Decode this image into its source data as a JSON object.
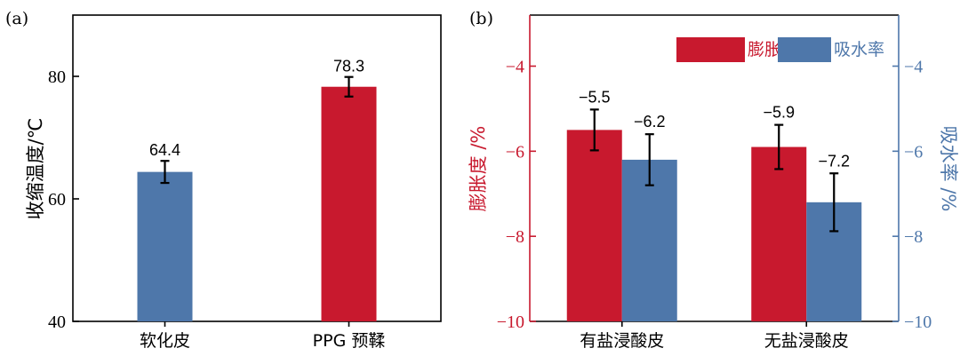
{
  "colors": {
    "red": "#C8192E",
    "blue": "#4E77AA",
    "black": "#000000"
  },
  "chart_data": [
    {
      "type": "bar",
      "panel_label": "(a)",
      "categories": [
        "软化皮",
        "PPG 预鞣"
      ],
      "values": [
        64.4,
        78.3
      ],
      "errors": [
        1.8,
        1.6
      ],
      "value_labels": [
        "64.4",
        "78.3"
      ],
      "bar_colors": [
        "#4E77AA",
        "#C8192E"
      ],
      "ylabel": "收缩温度/℃",
      "ylim": [
        40,
        90
      ],
      "yticks": [
        40,
        60,
        80
      ],
      "ytick_labels": [
        "40",
        "60",
        "80"
      ],
      "grid": false
    },
    {
      "type": "bar",
      "panel_label": "(b)",
      "categories": [
        "有盐浸酸皮",
        "无盐浸酸皮"
      ],
      "legend_position": "top-right",
      "series": [
        {
          "name": "膨胀度",
          "values": [
            -5.5,
            -5.9
          ],
          "errors": [
            0.48,
            0.52
          ],
          "value_labels": [
            "−5.5",
            "−5.9"
          ],
          "color": "#C8192E",
          "axis": "left"
        },
        {
          "name": "吸水率",
          "values": [
            -6.2,
            -7.2
          ],
          "errors": [
            0.6,
            0.68
          ],
          "value_labels": [
            "−6.2",
            "−7.2"
          ],
          "color": "#4E77AA",
          "axis": "right"
        }
      ],
      "ylabel_left": "膨胀度 /%",
      "ylabel_right": "吸水率 /%",
      "ylim": [
        -10,
        -2.8
      ],
      "yticks": [
        -10,
        -8,
        -6,
        -4
      ],
      "ytick_labels": [
        "−10",
        "−8",
        "−6",
        "−4"
      ],
      "grid": false
    }
  ]
}
